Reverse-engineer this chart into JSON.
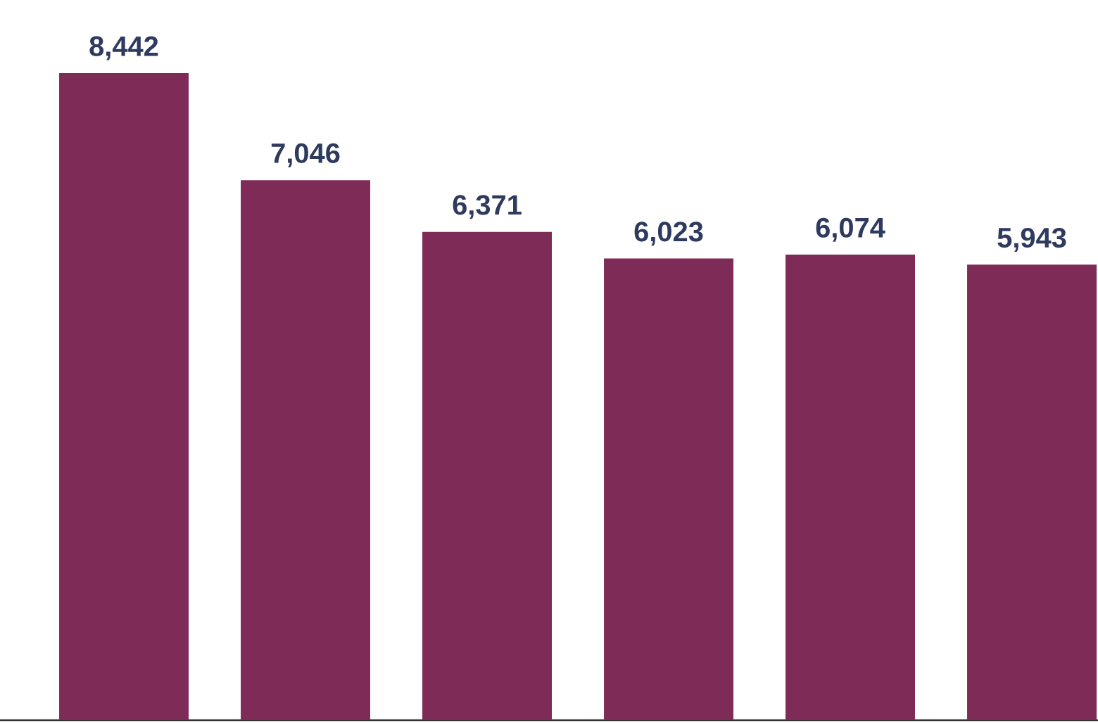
{
  "chart_data": {
    "type": "bar",
    "categories": [
      null,
      null,
      null,
      null,
      null,
      null
    ],
    "values": [
      8442,
      7046,
      6371,
      6023,
      6074,
      5943
    ],
    "value_labels": [
      "8,442",
      "7,046",
      "6,371",
      "6,023",
      "6,074",
      "5,943"
    ],
    "color": "#7e2b57"
  }
}
